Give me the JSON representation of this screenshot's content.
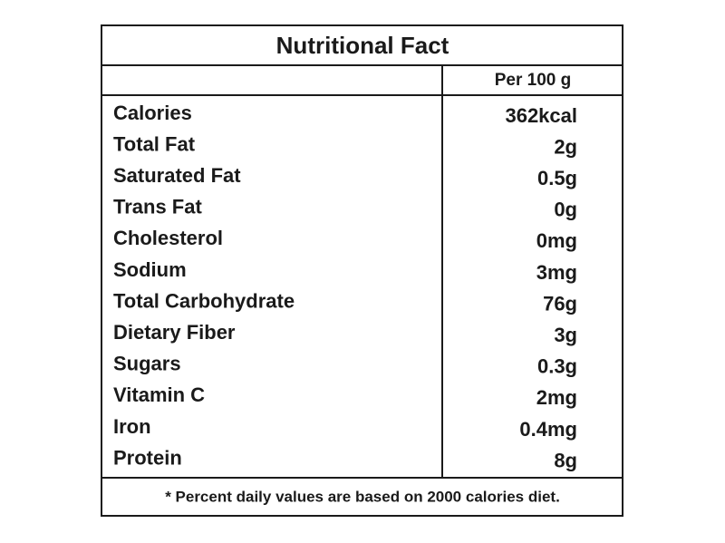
{
  "title": "Nutritional Fact",
  "table": {
    "header": "Per 100 g",
    "rows": [
      [
        "Calories",
        "362kcal"
      ],
      [
        "Total Fat",
        "2g"
      ],
      [
        "Saturated Fat",
        "0.5g"
      ],
      [
        "Trans Fat",
        "0g"
      ],
      [
        "Cholesterol",
        "0mg"
      ],
      [
        "Sodium",
        "3mg"
      ],
      [
        "Total Carbohydrate",
        "76g"
      ],
      [
        "Dietary Fiber",
        "3g"
      ],
      [
        "Sugars",
        "0.3g"
      ],
      [
        "Vitamin C",
        "2mg"
      ],
      [
        "Iron",
        "0.4mg"
      ],
      [
        "Protein",
        "8g"
      ]
    ]
  },
  "footnote": "* Percent daily values are based on 2000 calories diet."
}
